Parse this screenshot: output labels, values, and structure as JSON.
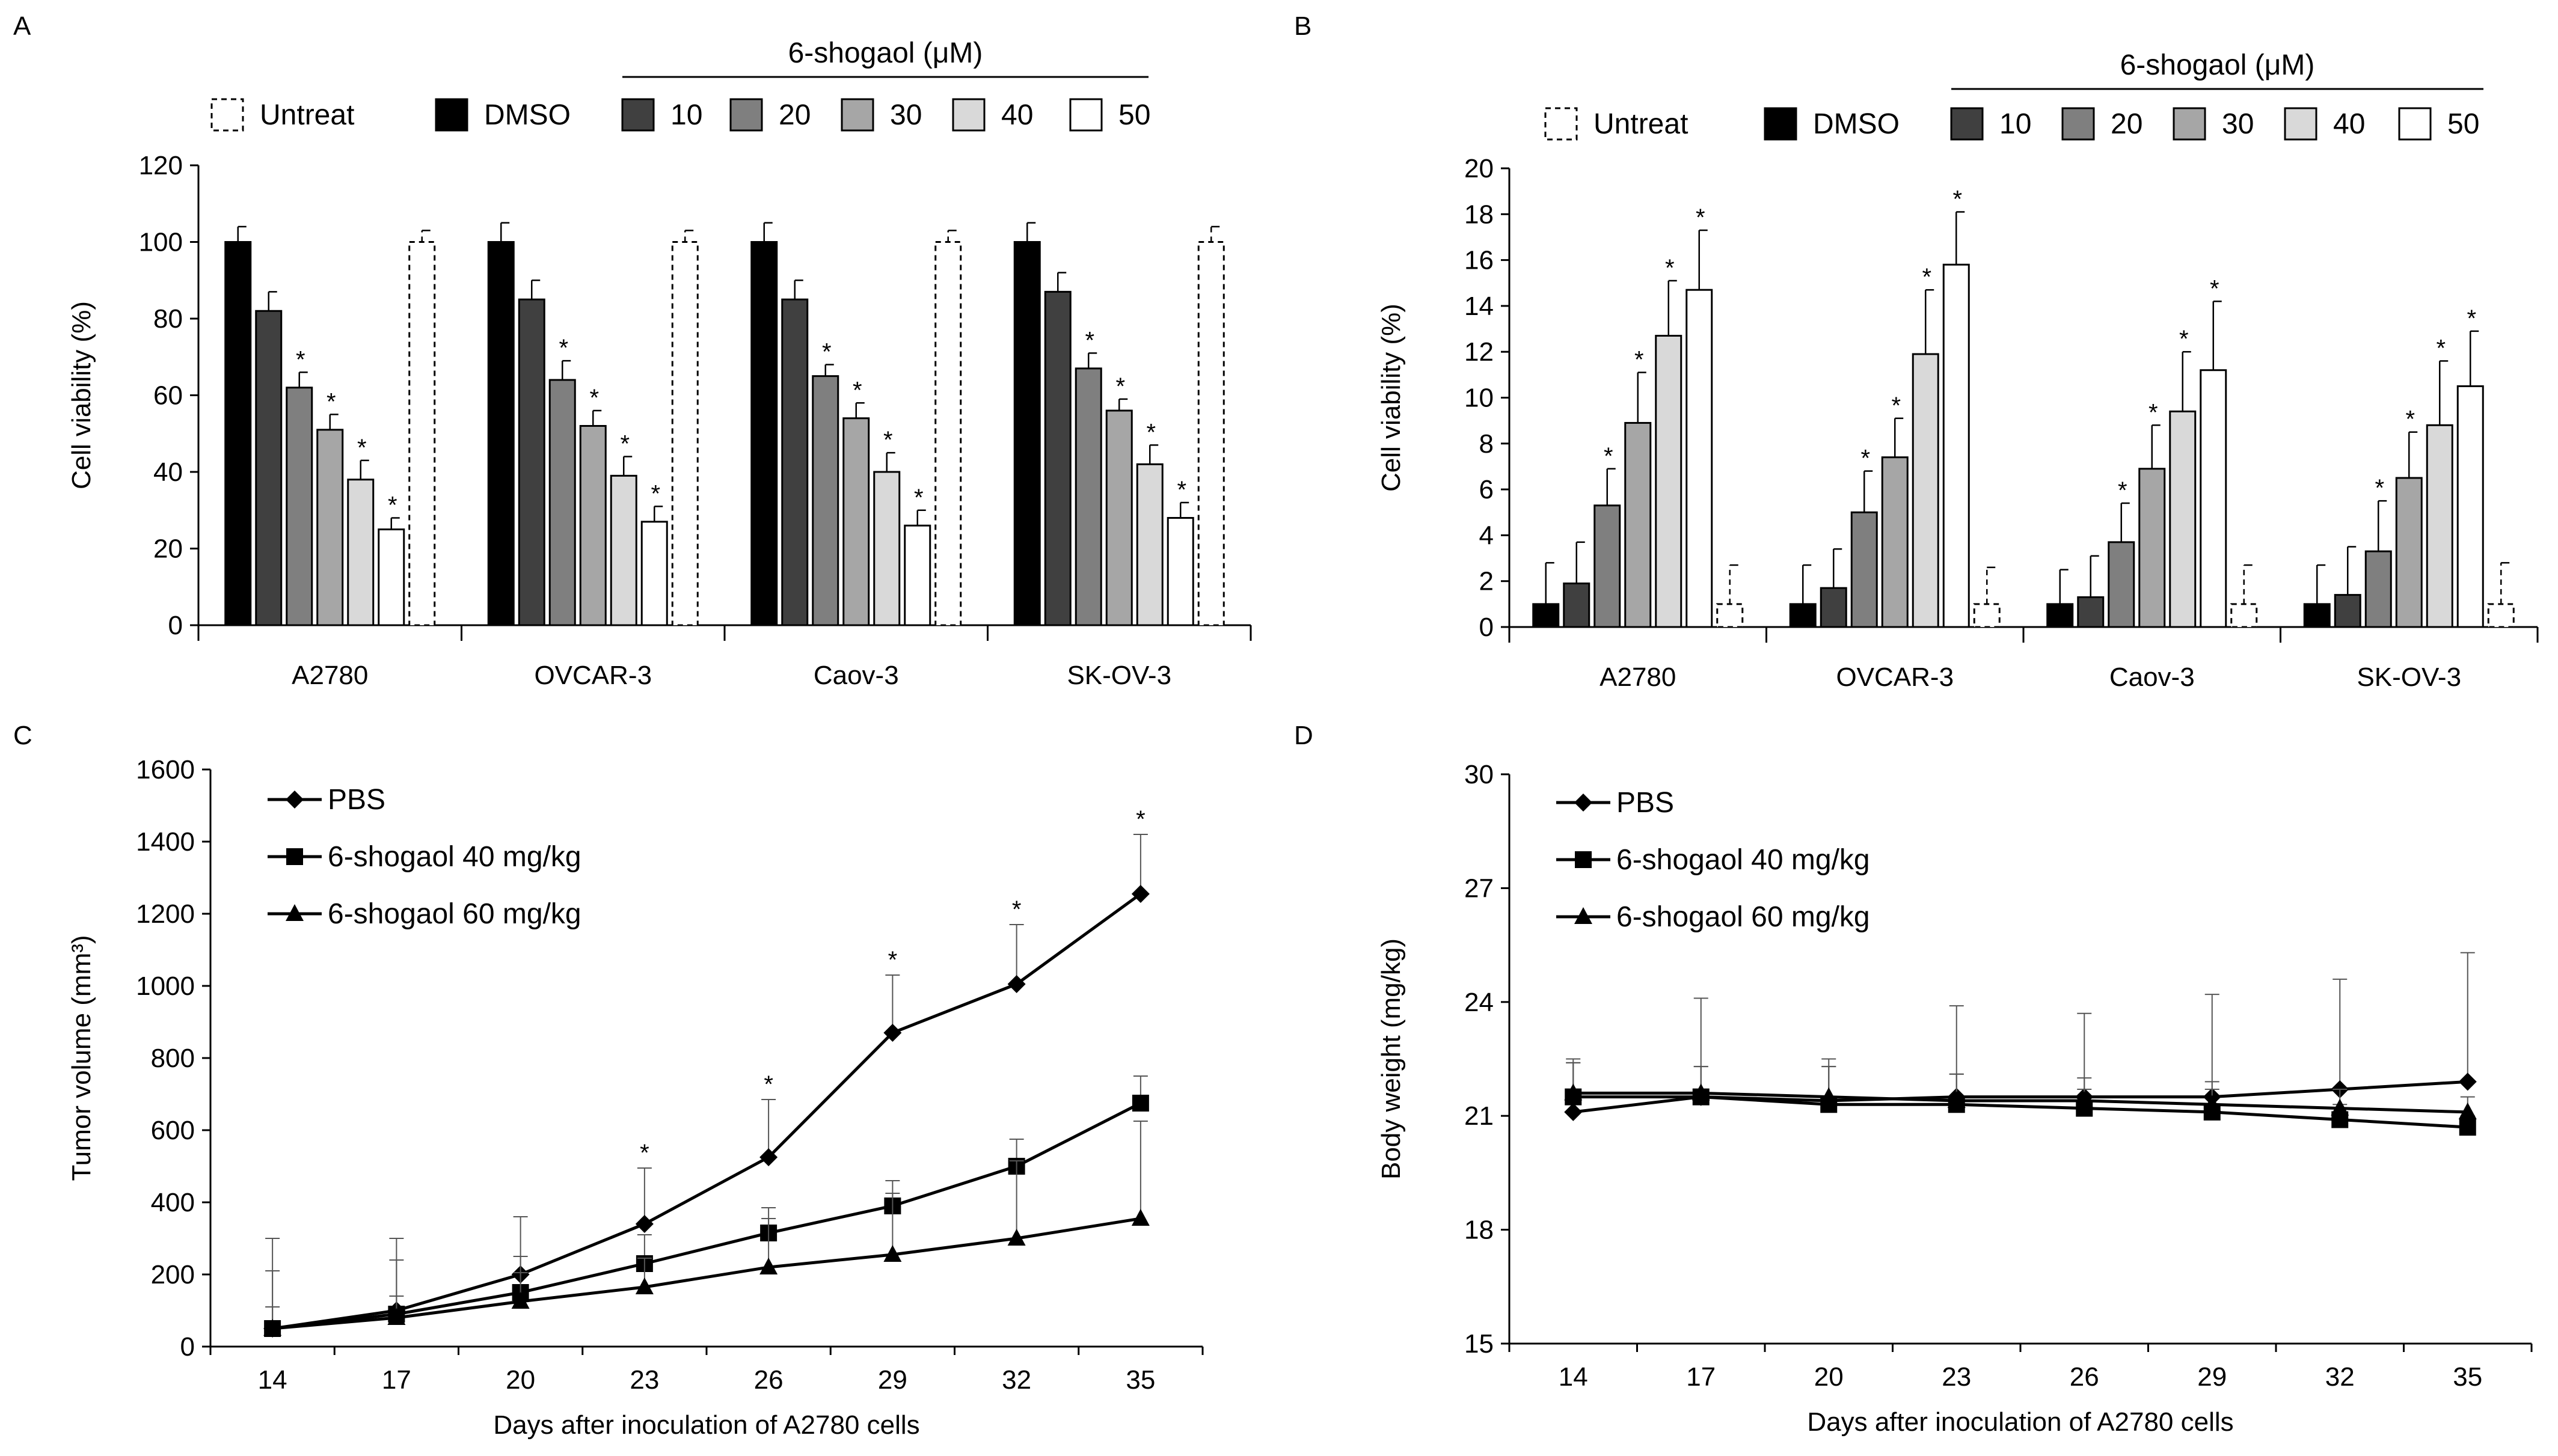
{
  "chart_data": [
    {
      "panel": "A",
      "type": "bar",
      "categories": [
        "A2780",
        "OVCAR-3",
        "Caov-3",
        "SK-OV-3"
      ],
      "ylabel": "Cell viability (%)",
      "xlabel": "",
      "ylim": [
        0,
        120
      ],
      "yticks": [
        "0",
        "20",
        "40",
        "60",
        "80",
        "100",
        "120"
      ],
      "legend_group_title": "6-shogaol (μM)",
      "legend": [
        "Untreat",
        "DMSO",
        "10",
        "20",
        "30",
        "40",
        "50"
      ],
      "series": [
        {
          "name": "DMSO",
          "color": "#000000",
          "dashed": false,
          "values": [
            100,
            100,
            100,
            100
          ],
          "errors": [
            4,
            5,
            5,
            5
          ],
          "sig": [
            false,
            false,
            false,
            false
          ]
        },
        {
          "name": "10",
          "color": "#404040",
          "dashed": false,
          "values": [
            82,
            85,
            85,
            87
          ],
          "errors": [
            5,
            5,
            5,
            5
          ],
          "sig": [
            false,
            false,
            false,
            false
          ]
        },
        {
          "name": "20",
          "color": "#7f7f7f",
          "dashed": false,
          "values": [
            62,
            64,
            65,
            67
          ],
          "errors": [
            4,
            5,
            3,
            4
          ],
          "sig": [
            true,
            true,
            true,
            true
          ]
        },
        {
          "name": "30",
          "color": "#a6a6a6",
          "dashed": false,
          "values": [
            51,
            52,
            54,
            56
          ],
          "errors": [
            4,
            4,
            4,
            3
          ],
          "sig": [
            true,
            true,
            true,
            true
          ]
        },
        {
          "name": "40",
          "color": "#d9d9d9",
          "dashed": false,
          "values": [
            38,
            39,
            40,
            42
          ],
          "errors": [
            5,
            5,
            5,
            5
          ],
          "sig": [
            true,
            true,
            true,
            true
          ]
        },
        {
          "name": "50",
          "color": "#ffffff",
          "dashed": false,
          "values": [
            25,
            27,
            26,
            28
          ],
          "errors": [
            3,
            4,
            4,
            4
          ],
          "sig": [
            true,
            true,
            true,
            true
          ]
        },
        {
          "name": "Untreat",
          "color": "#ffffff",
          "dashed": true,
          "values": [
            100,
            100,
            100,
            100
          ],
          "errors": [
            3,
            3,
            3,
            4
          ],
          "sig": [
            false,
            false,
            false,
            false
          ]
        }
      ]
    },
    {
      "panel": "B",
      "type": "bar",
      "categories": [
        "A2780",
        "OVCAR-3",
        "Caov-3",
        "SK-OV-3"
      ],
      "ylabel": "Cell viability (%)",
      "xlabel": "",
      "ylim": [
        0,
        20
      ],
      "yticks": [
        "0",
        "2",
        "4",
        "6",
        "8",
        "10",
        "12",
        "14",
        "16",
        "18",
        "20"
      ],
      "legend_group_title": "6-shogaol (μM)",
      "legend": [
        "Untreat",
        "DMSO",
        "10",
        "20",
        "30",
        "40",
        "50"
      ],
      "series": [
        {
          "name": "DMSO",
          "color": "#000000",
          "dashed": false,
          "values": [
            1,
            1,
            1,
            1
          ],
          "errors": [
            1.8,
            1.7,
            1.5,
            1.7
          ],
          "sig": [
            false,
            false,
            false,
            false
          ]
        },
        {
          "name": "10",
          "color": "#404040",
          "dashed": false,
          "values": [
            1.9,
            1.7,
            1.3,
            1.4
          ],
          "errors": [
            1.8,
            1.7,
            1.8,
            2.1
          ],
          "sig": [
            false,
            false,
            false,
            false
          ]
        },
        {
          "name": "20",
          "color": "#7f7f7f",
          "dashed": false,
          "values": [
            5.3,
            5.0,
            3.7,
            3.3
          ],
          "errors": [
            1.6,
            1.8,
            1.7,
            2.2
          ],
          "sig": [
            true,
            true,
            true,
            true
          ]
        },
        {
          "name": "30",
          "color": "#a6a6a6",
          "dashed": false,
          "values": [
            8.9,
            7.4,
            6.9,
            6.5
          ],
          "errors": [
            2.2,
            1.7,
            1.9,
            2.0
          ],
          "sig": [
            true,
            true,
            true,
            true
          ]
        },
        {
          "name": "40",
          "color": "#d9d9d9",
          "dashed": false,
          "values": [
            12.7,
            11.9,
            9.4,
            8.8
          ],
          "errors": [
            2.4,
            2.8,
            2.6,
            2.8
          ],
          "sig": [
            true,
            true,
            true,
            true
          ]
        },
        {
          "name": "50",
          "color": "#ffffff",
          "dashed": false,
          "values": [
            14.7,
            15.8,
            11.2,
            10.5
          ],
          "errors": [
            2.6,
            2.3,
            3.0,
            2.4
          ],
          "sig": [
            true,
            true,
            true,
            true
          ]
        },
        {
          "name": "Untreat",
          "color": "#ffffff",
          "dashed": true,
          "values": [
            1,
            1,
            1,
            1
          ],
          "errors": [
            1.7,
            1.6,
            1.7,
            1.8
          ],
          "sig": [
            false,
            false,
            false,
            false
          ]
        }
      ]
    },
    {
      "panel": "C",
      "type": "line",
      "x": [
        14,
        17,
        20,
        23,
        26,
        29,
        32,
        35
      ],
      "xlabel": "Days after inoculation of A2780 cells",
      "ylabel": "Tumor volume (mm³)",
      "ylim": [
        0,
        1600
      ],
      "yticks": [
        "0",
        "200",
        "400",
        "600",
        "800",
        "1000",
        "1200",
        "1400",
        "1600"
      ],
      "series": [
        {
          "name": "PBS",
          "marker": "diamond",
          "values": [
            50,
            100,
            200,
            340,
            525,
            870,
            1005,
            1255
          ],
          "errors": [
            250,
            200,
            160,
            155,
            160,
            160,
            165,
            165
          ],
          "sig": [
            false,
            false,
            false,
            true,
            true,
            true,
            true,
            true
          ]
        },
        {
          "name": "6-shogaol 40 mg/kg",
          "marker": "square",
          "values": [
            50,
            90,
            150,
            230,
            315,
            390,
            500,
            675
          ],
          "errors": [
            160,
            150,
            100,
            80,
            70,
            70,
            75,
            75
          ],
          "sig": [
            false,
            false,
            false,
            false,
            false,
            false,
            false,
            false
          ]
        },
        {
          "name": "6-shogaol 60 mg/kg",
          "marker": "triangle",
          "values": [
            50,
            80,
            125,
            165,
            220,
            255,
            300,
            355
          ],
          "errors": [
            60,
            60,
            80,
            80,
            135,
            170,
            215,
            270
          ],
          "sig": [
            false,
            false,
            false,
            false,
            false,
            false,
            false,
            false
          ]
        }
      ]
    },
    {
      "panel": "D",
      "type": "line",
      "x": [
        14,
        17,
        20,
        23,
        26,
        29,
        32,
        35
      ],
      "xlabel": "Days after inoculation of A2780 cells",
      "ylabel": "Body weight (mg/kg)",
      "ylim": [
        15,
        30
      ],
      "yticks": [
        "15",
        "18",
        "21",
        "24",
        "27",
        "30"
      ],
      "series": [
        {
          "name": "PBS",
          "marker": "diamond",
          "values": [
            21.1,
            21.5,
            21.4,
            21.5,
            21.5,
            21.5,
            21.7,
            21.9
          ],
          "errors": [
            1.4,
            2.6,
            1.1,
            2.4,
            2.2,
            2.7,
            2.9,
            3.4
          ],
          "sig": [
            false,
            false,
            false,
            false,
            false,
            false,
            false,
            false
          ]
        },
        {
          "name": "6-shogaol 40 mg/kg",
          "marker": "square",
          "values": [
            21.5,
            21.5,
            21.3,
            21.3,
            21.2,
            21.1,
            20.9,
            20.7
          ],
          "errors": [
            0.9,
            0.8,
            1.0,
            0.8,
            0.5,
            0.6,
            0.4,
            0.3
          ],
          "sig": [
            false,
            false,
            false,
            false,
            false,
            false,
            false,
            false
          ]
        },
        {
          "name": "6-shogaol 60 mg/kg",
          "marker": "triangle",
          "values": [
            21.6,
            21.6,
            21.5,
            21.4,
            21.4,
            21.3,
            21.2,
            21.1
          ],
          "errors": [
            0.8,
            0.7,
            0.8,
            0.7,
            0.6,
            0.6,
            0.5,
            0.4
          ],
          "sig": [
            false,
            false,
            false,
            false,
            false,
            false,
            false,
            false
          ]
        }
      ]
    }
  ]
}
